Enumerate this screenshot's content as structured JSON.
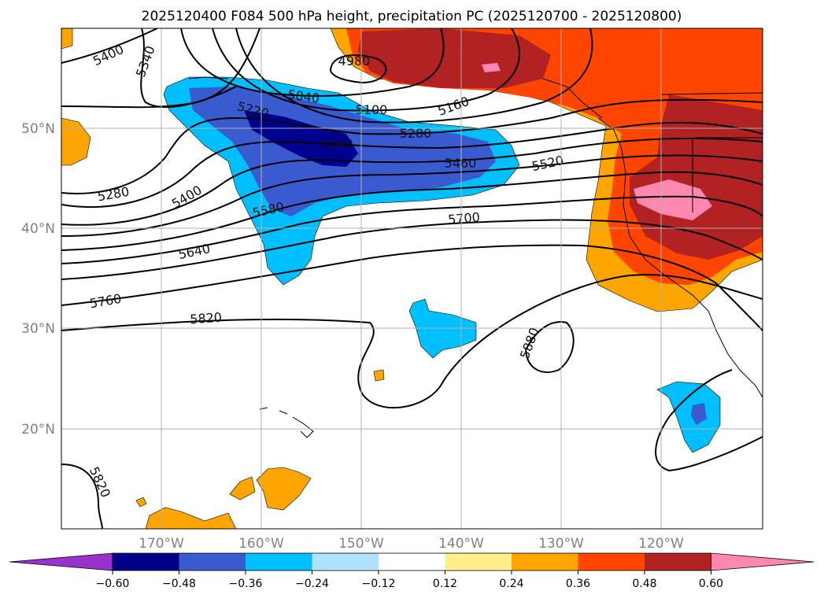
{
  "title": "2025120400 F084 500 hPa height, precipitation PC (2025120700 - 2025120800)",
  "map": {
    "lon_ticks": [
      "170°W",
      "160°W",
      "150°W",
      "140°W",
      "130°W",
      "120°W"
    ],
    "lat_ticks": [
      "50°N",
      "40°N",
      "30°N",
      "20°N"
    ],
    "contour_labels": [
      "5400",
      "5340",
      "4980",
      "5040",
      "5100",
      "5160",
      "5220",
      "5340",
      "5280",
      "5460",
      "5520",
      "5280",
      "5400",
      "5580",
      "5700",
      "5640",
      "5760",
      "5820",
      "5880",
      "5820"
    ],
    "field_colors": {
      "neg_060": "#000090",
      "neg_048": "#3a5bd0",
      "neg_036": "#00bfff",
      "neg_024": "#b0e2ff",
      "pos_012": "#fff08c",
      "pos_024": "#ffa500",
      "pos_036": "#ff4500",
      "pos_048": "#b22222",
      "pos_060": "#ff88b0"
    }
  },
  "colorbar": {
    "colors": [
      "#9932cc",
      "#00008b",
      "#3a5bd0",
      "#00bfff",
      "#b0e2ff",
      "#ffffff",
      "#fff08c",
      "#ffa500",
      "#ff4500",
      "#b22222",
      "#ff88b0"
    ],
    "ticks": [
      "−0.60",
      "−0.48",
      "−0.36",
      "−0.24",
      "−0.12",
      "0.12",
      "0.24",
      "0.36",
      "0.48",
      "0.60"
    ]
  }
}
